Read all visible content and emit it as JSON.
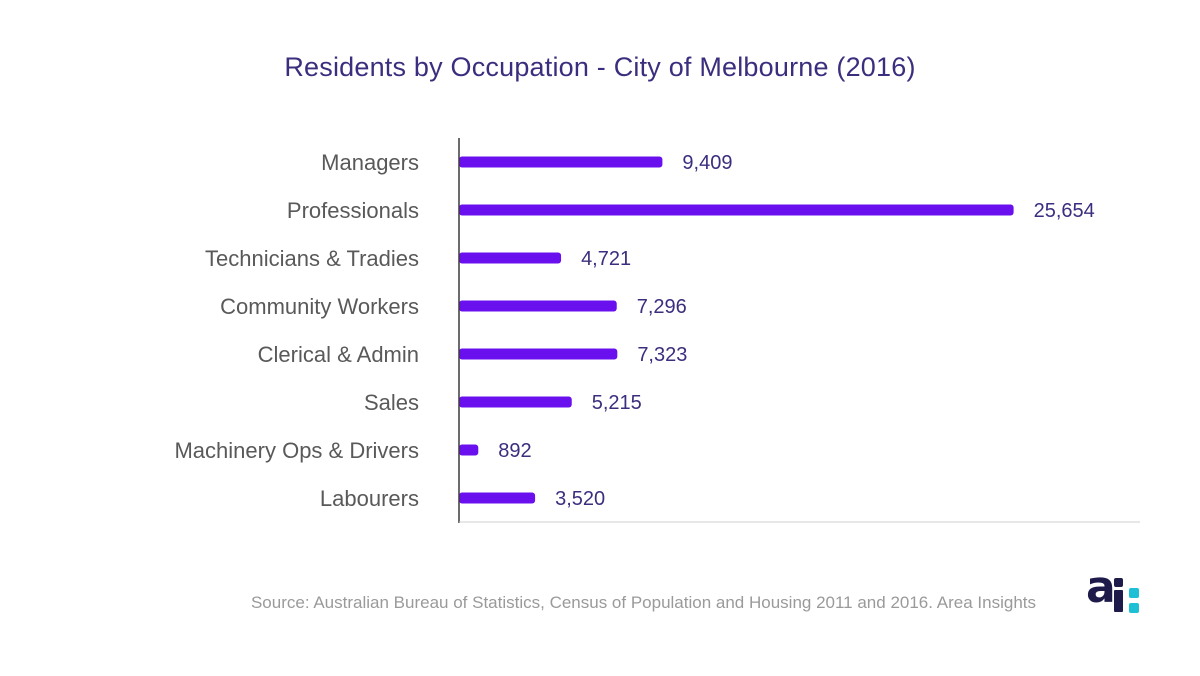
{
  "chart_data": {
    "type": "bar",
    "orientation": "horizontal",
    "title": "Residents by Occupation - City of Melbourne (2016)",
    "categories": [
      "Managers",
      "Professionals",
      "Technicians & Tradies",
      "Community Workers",
      "Clerical & Admin",
      "Sales",
      "Machinery Ops & Drivers",
      "Labourers"
    ],
    "values": [
      9409,
      25654,
      4721,
      7296,
      7323,
      5215,
      892,
      3520
    ],
    "value_labels": [
      "9,409",
      "25,654",
      "4,721",
      "7,296",
      "7,323",
      "5,215",
      "892",
      "3,520"
    ],
    "xlim": [
      0,
      31500
    ],
    "xlabel": "",
    "ylabel": "",
    "grid": false,
    "bar_color": "#6a10ee"
  },
  "source": "Source: Australian Bureau of Statistics, Census of Population and Housing 2011 and 2016. Area Insights",
  "logo": {
    "text": "ai:",
    "colors": {
      "dark": "#1e1b4b",
      "accent": "#1fc0d6"
    }
  }
}
